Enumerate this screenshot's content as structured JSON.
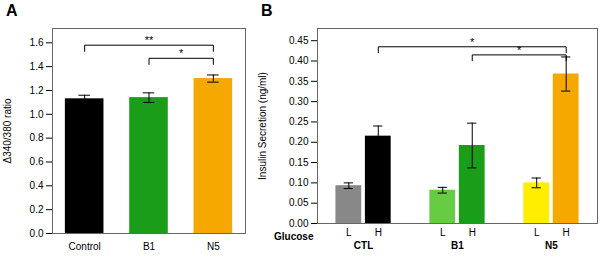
{
  "chart_data": [
    {
      "type": "bar",
      "title": "A",
      "categories": [
        "Control",
        "B1",
        "N5"
      ],
      "values": [
        1.13,
        1.14,
        1.3
      ],
      "errors": [
        0.03,
        0.04,
        0.03
      ],
      "colors": [
        "#000000",
        "#1a9e1a",
        "#f5a800"
      ],
      "ylabel": "Δ340/380 ratio",
      "ylim": [
        0,
        1.72
      ],
      "yticks": [
        {
          "value": 0,
          "label": "0.0"
        },
        0.2,
        0.4,
        0.6,
        0.8,
        {
          "value": 1.0,
          "label": "1.0"
        },
        1.2,
        1.4,
        1.6
      ],
      "annotations": [
        {
          "from": "Control",
          "to": "N5",
          "y": 1.58,
          "label": "**"
        },
        {
          "from": "B1",
          "to": "N5",
          "y": 1.47,
          "label": "*"
        }
      ]
    },
    {
      "type": "bar",
      "title": "B",
      "categories": [
        "CTL",
        "B1",
        "N5"
      ],
      "xlabel": "Glucose",
      "ylabel": "Insulin Secretion (ng/ml)",
      "series": [
        {
          "name": "L",
          "colors": [
            "#888888",
            "#66cc44",
            "#ffee00"
          ],
          "values": [
            0.093,
            0.082,
            0.1
          ],
          "errors": [
            0.007,
            0.007,
            0.012
          ]
        },
        {
          "name": "H",
          "colors": [
            "#000000",
            "#1a9e1a",
            "#f5a800"
          ],
          "values": [
            0.215,
            0.192,
            0.368
          ],
          "errors": [
            0.025,
            0.055,
            0.042
          ]
        }
      ],
      "ylim": [
        0,
        0.48
      ],
      "yticks": [
        {
          "value": 0,
          "label": "0.00"
        },
        0.05,
        {
          "value": 0.1,
          "label": "0.10"
        },
        0.15,
        {
          "value": 0.2,
          "label": "0.20"
        },
        0.25,
        {
          "value": 0.3,
          "label": "0.30"
        },
        0.35,
        {
          "value": 0.4,
          "label": "0.40"
        },
        0.45
      ],
      "annotations": [
        {
          "from": [
            "CTL",
            "H"
          ],
          "to": [
            "N5",
            "H"
          ],
          "y": 0.435,
          "label": "*"
        },
        {
          "from": [
            "B1",
            "H"
          ],
          "to": [
            "N5",
            "H"
          ],
          "y": 0.415,
          "label": "*"
        }
      ]
    }
  ]
}
